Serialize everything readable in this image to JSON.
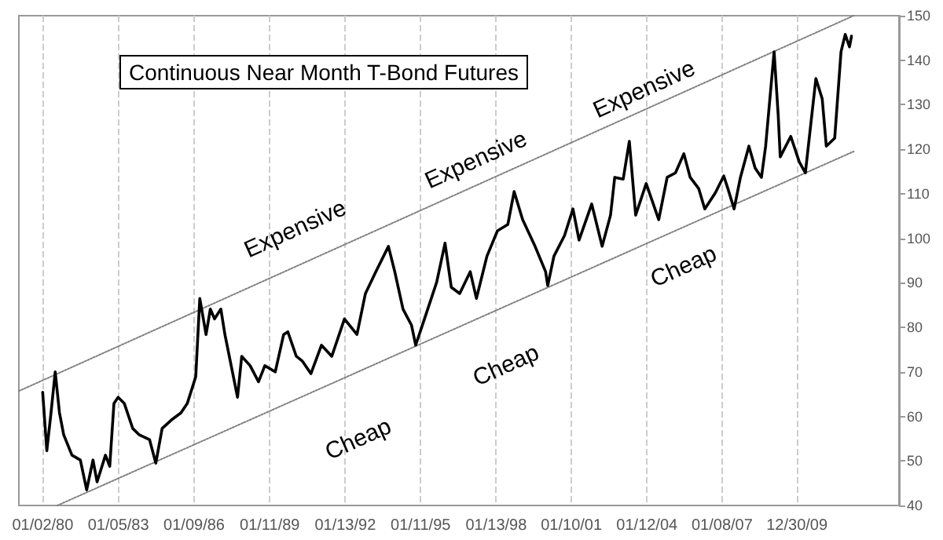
{
  "chart_data": {
    "type": "line",
    "title": "Continuous Near Month T-Bond Futures",
    "series": [
      {
        "color": "#000000",
        "x": [
          "1980-01",
          "1980-03",
          "1980-05",
          "1980-07",
          "1980-09",
          "1980-11",
          "1981-03",
          "1981-07",
          "1981-10",
          "1982-01",
          "1982-03",
          "1982-07",
          "1982-09",
          "1982-11",
          "1983-01",
          "1983-04",
          "1983-08",
          "1983-11",
          "1984-04",
          "1984-07",
          "1984-10",
          "1985-03",
          "1985-07",
          "1985-10",
          "1986-02",
          "1986-04",
          "1986-07",
          "1986-09",
          "1986-11",
          "1987-02",
          "1987-04",
          "1987-07",
          "1987-10",
          "1987-12",
          "1988-04",
          "1988-08",
          "1988-11",
          "1989-04",
          "1989-08",
          "1989-10",
          "1990-02",
          "1990-05",
          "1990-09",
          "1991-02",
          "1991-07",
          "1992-01",
          "1992-07",
          "1992-11",
          "1993-04",
          "1993-10",
          "1994-01",
          "1994-05",
          "1994-09",
          "1994-11",
          "1995-04",
          "1995-09",
          "1996-01",
          "1996-04",
          "1996-08",
          "1997-01",
          "1997-04",
          "1997-09",
          "1998-02",
          "1998-07",
          "1998-10",
          "1999-02",
          "1999-08",
          "2000-01",
          "2000-02",
          "2000-05",
          "2000-10",
          "2001-02",
          "2001-05",
          "2001-11",
          "2002-04",
          "2002-08",
          "2002-10",
          "2003-02",
          "2003-05",
          "2003-08",
          "2004-01",
          "2004-07",
          "2004-11",
          "2005-03",
          "2005-07",
          "2005-10",
          "2006-02",
          "2006-05",
          "2006-10",
          "2007-02",
          "2007-04",
          "2007-07",
          "2007-10",
          "2008-02",
          "2008-05",
          "2008-08",
          "2008-10",
          "2009-02",
          "2009-04",
          "2009-05",
          "2009-10",
          "2010-02",
          "2010-05",
          "2010-10",
          "2011-01",
          "2011-03",
          "2011-07",
          "2011-10",
          "2011-12",
          "2012-02",
          "2012-03"
        ],
        "values": [
          65.4,
          52.3,
          60.8,
          70.0,
          60.8,
          55.9,
          51.3,
          50.2,
          43.5,
          50.2,
          45.3,
          51.3,
          48.8,
          62.9,
          64.3,
          62.9,
          57.3,
          55.9,
          54.8,
          49.5,
          57.3,
          59.4,
          60.8,
          62.9,
          68.9,
          86.5,
          78.4,
          84.1,
          81.9,
          84.1,
          78.4,
          71.4,
          64.3,
          73.5,
          71.4,
          67.8,
          71.4,
          70.0,
          78.4,
          79.0,
          73.5,
          72.4,
          69.6,
          76.0,
          73.5,
          81.9,
          78.4,
          87.6,
          92.5,
          98.2,
          92.5,
          84.1,
          80.5,
          76.0,
          83.0,
          90.1,
          98.9,
          89.0,
          87.6,
          92.5,
          86.5,
          96.0,
          101.7,
          103.1,
          110.5,
          104.2,
          98.2,
          92.5,
          89.4,
          96.0,
          100.6,
          106.6,
          99.6,
          107.7,
          98.2,
          105.2,
          113.7,
          113.3,
          121.8,
          105.2,
          112.3,
          104.2,
          113.7,
          114.7,
          119.0,
          113.7,
          111.2,
          106.6,
          110.2,
          114.0,
          111.2,
          106.6,
          113.7,
          120.7,
          115.8,
          113.7,
          120.7,
          141.9,
          127.8,
          118.3,
          122.9,
          117.2,
          114.7,
          135.9,
          131.3,
          120.7,
          122.5,
          141.9,
          145.8,
          143.0,
          145.4
        ]
      },
      {
        "color": "#808080",
        "line_style": "dotted",
        "x": [
          "1979-01-20",
          "2012-04"
        ],
        "values": [
          65.7,
          150
        ]
      },
      {
        "color": "#808080",
        "line_style": "dotted",
        "x": [
          "1980-08",
          "2012-04"
        ],
        "values": [
          40,
          119.5
        ]
      }
    ],
    "annotations": [
      "Expensive",
      "Expensive",
      "Expensive",
      "Cheap",
      "Cheap",
      "Cheap"
    ],
    "xlim": [
      "1979-01-20",
      "2014-01-20"
    ],
    "xticks": [
      {
        "value": "1980-01-02",
        "label": "01/02/80"
      },
      {
        "value": "1983-01-05",
        "label": "01/05/83"
      },
      {
        "value": "1986-01-09",
        "label": "01/09/86"
      },
      {
        "value": "1989-01-11",
        "label": "01/11/89"
      },
      {
        "value": "1992-01-13",
        "label": "01/13/92"
      },
      {
        "value": "1995-01-11",
        "label": "01/11/95"
      },
      {
        "value": "1998-01-13",
        "label": "01/13/98"
      },
      {
        "value": "2001-01-10",
        "label": "01/10/01"
      },
      {
        "value": "2004-01-12",
        "label": "01/12/04"
      },
      {
        "value": "2007-01-08",
        "label": "01/08/07"
      },
      {
        "value": "2009-12-30",
        "label": "12/30/09"
      }
    ],
    "ylim": [
      40,
      150
    ],
    "yticks": [
      40,
      50,
      60,
      70,
      80,
      90,
      100,
      110,
      120,
      130,
      140,
      150
    ],
    "grid": "x",
    "marker": "none",
    "line_style": "solid"
  }
}
